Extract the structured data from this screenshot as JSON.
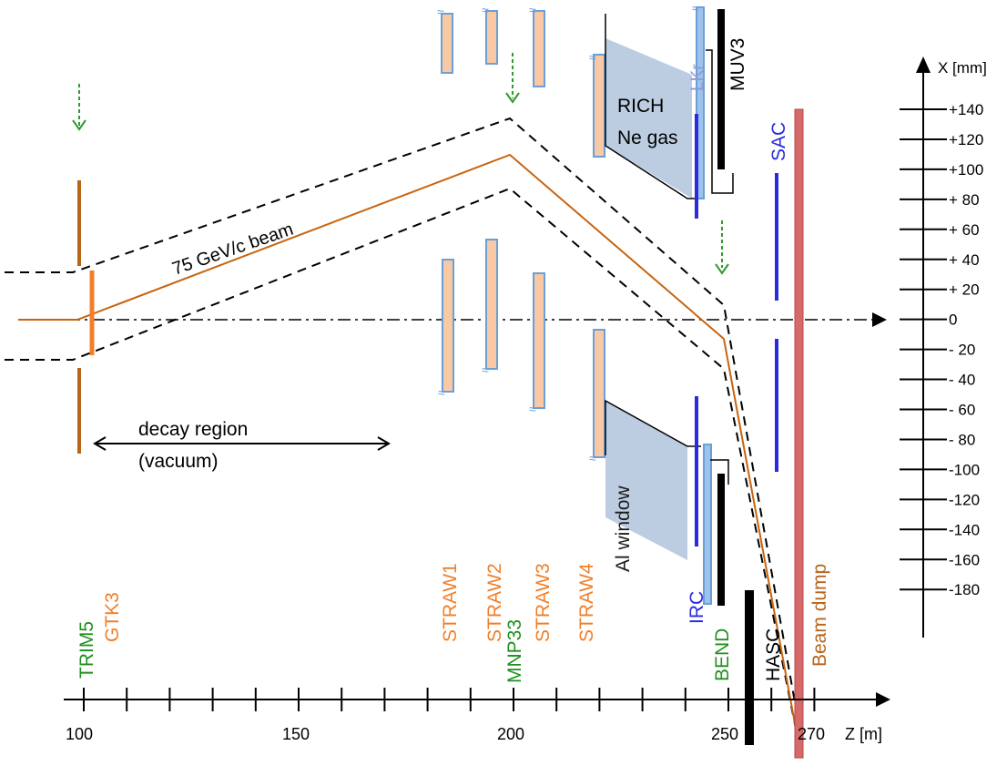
{
  "beam": {
    "label": "75 GeV/c beam"
  },
  "decay_region": {
    "line1": "decay region",
    "line2": "(vacuum)"
  },
  "rich": {
    "line1": "RICH",
    "line2": "Ne gas"
  },
  "detectors": {
    "lkr": "LKr",
    "muv3": "MUV3",
    "sac": "SAC",
    "al_window": "Al window",
    "irc": "IRC",
    "bend": "BEND",
    "hasc": "HASC",
    "beam_dump": "Beam dump",
    "trim5": "TRIM5",
    "gtk3": "GTK3",
    "straw1": "STRAW1",
    "straw2": "STRAW2",
    "straw3": "STRAW3",
    "straw4": "STRAW4",
    "mnp33": "MNP33"
  },
  "z_axis": {
    "unit_label": "Z [m]",
    "tick_labels": [
      "100",
      "150",
      "200",
      "250",
      "270"
    ]
  },
  "x_axis": {
    "unit_label": "X [mm]",
    "tick_labels": [
      "+140",
      "+120",
      "+100",
      "+ 80",
      "+ 60",
      "+ 40",
      "+ 20",
      "0",
      "- 20",
      "- 40",
      "- 60",
      "- 80",
      "-100",
      "-120",
      "-140",
      "-160",
      "-180"
    ]
  },
  "colors": {
    "orange": "#f07f2a",
    "green": "#1f8f1f",
    "blue": "#2a2ae0",
    "beam_line": "#c8640f",
    "straw_fill": "#f9c9a5",
    "straw_edge": "#6a9fd8",
    "rich_fill": "#b9cadf",
    "beam_dump": "#d66a6a",
    "trim_brown": "#b8651a",
    "lkr_label": "#8c9bd6",
    "al_label": "#1a1a1a"
  }
}
